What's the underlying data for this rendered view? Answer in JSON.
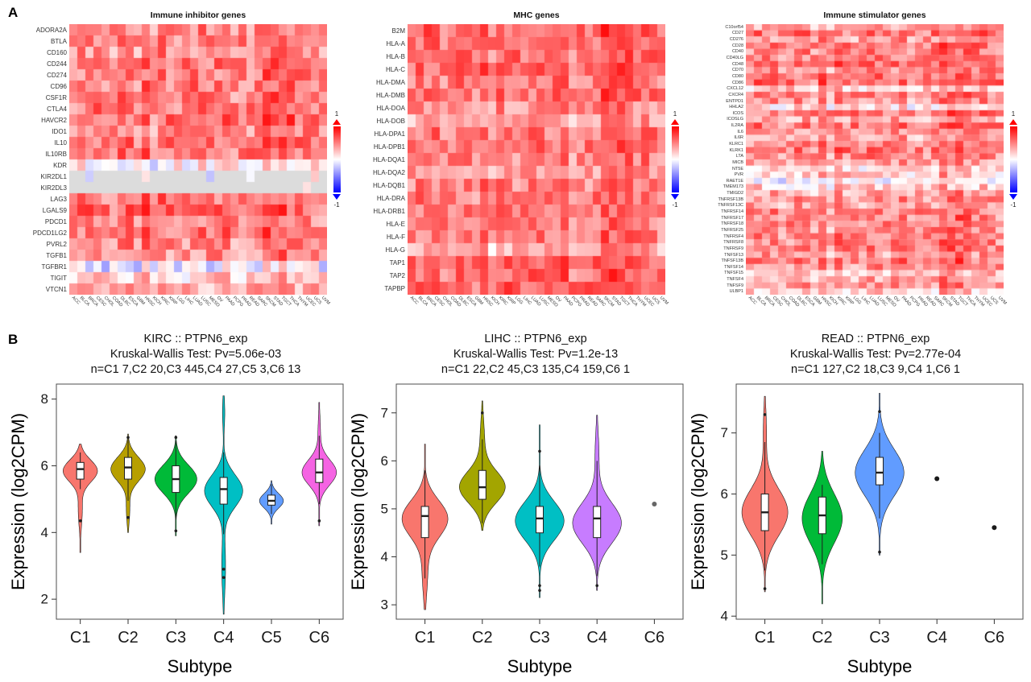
{
  "chart_data": [
    {
      "id": "panel-a",
      "type": "heatmap",
      "label": "A",
      "cancer_types": [
        "ACC",
        "BLCA",
        "BRCA",
        "CESC",
        "CHOL",
        "COAD",
        "DLBC",
        "ESCA",
        "GBM",
        "HNSC",
        "KICH",
        "KIRC",
        "KIRP",
        "LGG",
        "LIHC",
        "LUAD",
        "LUSC",
        "MESO",
        "OV",
        "PAAD",
        "PCPG",
        "PRAD",
        "READ",
        "SARC",
        "SKCM",
        "STAD",
        "TGCT",
        "THCA",
        "THYM",
        "UCEC",
        "UCS",
        "UVM"
      ],
      "col_bias": [
        0,
        0.05,
        0.05,
        0.05,
        -0.05,
        0,
        0.05,
        0.05,
        -0.05,
        0.12,
        -0.08,
        0.1,
        0.02,
        0,
        0,
        0.05,
        0.05,
        0,
        0.05,
        0.1,
        -0.05,
        0,
        0,
        0.05,
        0.2,
        0.15,
        0.18,
        0.12,
        0.05,
        0.1,
        0.05,
        -0.02
      ],
      "colors": {
        "pos": "#FF0000",
        "neg": "#0000FF",
        "na": "#DCDCDC"
      },
      "colorbar": {
        "max_label": "1",
        "min_label": "-1"
      },
      "value_range": [
        -1,
        1
      ],
      "heatmaps": [
        {
          "title": "Immune inhibitor genes",
          "seed": 11,
          "noise": 0.5,
          "na_rows": [
            "KIR2DL1",
            "KIR2DL3"
          ],
          "genes": [
            "ADORA2A",
            "BTLA",
            "CD160",
            "CD244",
            "CD274",
            "CD96",
            "CSF1R",
            "CTLA4",
            "HAVCR2",
            "IDO1",
            "IL10",
            "IL10RB",
            "KDR",
            "KIR2DL1",
            "KIR2DL3",
            "LAG3",
            "LGALS9",
            "PDCD1",
            "PDCD1LG2",
            "PVRL2",
            "TGFB1",
            "TGFBR1",
            "TIGIT",
            "VTCN1"
          ],
          "row_bias": [
            0.45,
            0.45,
            0.4,
            0.5,
            0.45,
            0.5,
            0.5,
            0.5,
            0.55,
            0.45,
            0.5,
            0.5,
            0.05,
            0,
            0,
            0.5,
            0.55,
            0.45,
            0.5,
            0.45,
            0.4,
            -0.1,
            0.15,
            0.3
          ]
        },
        {
          "title": "MHC genes",
          "seed": 22,
          "noise": 0.45,
          "na_rows": [],
          "genes": [
            "B2M",
            "HLA-A",
            "HLA-B",
            "HLA-C",
            "HLA-DMA",
            "HLA-DMB",
            "HLA-DOA",
            "HLA-DOB",
            "HLA-DPA1",
            "HLA-DPB1",
            "HLA-DQA1",
            "HLA-DQA2",
            "HLA-DQB1",
            "HLA-DRA",
            "HLA-DRB1",
            "HLA-E",
            "HLA-F",
            "HLA-G",
            "TAP1",
            "TAP2",
            "TAPBP"
          ],
          "row_bias": [
            0.6,
            0.55,
            0.55,
            0.55,
            0.5,
            0.5,
            0.4,
            0.3,
            0.5,
            0.5,
            0.45,
            0.35,
            0.45,
            0.5,
            0.5,
            0.5,
            0.5,
            0.3,
            0.55,
            0.55,
            0.6
          ]
        },
        {
          "title": "Immune stimulator genes",
          "seed": 33,
          "noise": 0.5,
          "na_rows": [],
          "genes": [
            "C10orf54",
            "CD27",
            "CD276",
            "CD28",
            "CD40",
            "CD40LG",
            "CD48",
            "CD70",
            "CD80",
            "CD86",
            "CXCL12",
            "CXCR4",
            "ENTPD1",
            "HHLA2",
            "ICOS",
            "ICOSLG",
            "IL2RA",
            "IL6",
            "IL6R",
            "KLRC1",
            "KLRK1",
            "LTA",
            "MICB",
            "NT5E",
            "PVR",
            "RAET1E",
            "TMEM173",
            "TMIGD2",
            "TNFRSF13B",
            "TNFRSF13C",
            "TNFRSF14",
            "TNFRSF17",
            "TNFRSF18",
            "TNFRSF25",
            "TNFRSF4",
            "TNFRSF8",
            "TNFRSF9",
            "TNFSF13",
            "TNFSF13B",
            "TNFSF14",
            "TNFSF15",
            "TNFSF4",
            "TNFSF9",
            "ULBP1"
          ],
          "row_bias": [
            0.3,
            0.5,
            0.35,
            0.5,
            0.45,
            0.45,
            0.55,
            0.4,
            0.5,
            0.55,
            0.2,
            0.45,
            0.4,
            0.1,
            0.5,
            0.3,
            0.5,
            0.35,
            0.3,
            0.45,
            0.5,
            0.45,
            0.35,
            0.15,
            0.2,
            0.0,
            0.15,
            0.3,
            0.4,
            0.35,
            0.45,
            0.45,
            0.45,
            0.4,
            0.45,
            0.45,
            0.45,
            0.35,
            0.5,
            0.4,
            0.2,
            0.3,
            0.35,
            0.15
          ]
        }
      ]
    },
    {
      "id": "panel-b",
      "type": "violin",
      "label": "B",
      "plots": [
        {
          "title_line1": "KIRC :: PTPN6_exp",
          "title_line2": "Kruskal-Wallis Test: Pv=5.06e-03",
          "title_line3": "n=C1 7,C2 20,C3 445,C4 27,C5 3,C6 13",
          "ylab": "Expression (log2CPM)",
          "xlab": "Subtype",
          "ylim": [
            1.4,
            8.45
          ],
          "yticks": [
            2,
            4,
            6,
            8
          ],
          "violins": [
            {
              "label": "C1",
              "type": "violin",
              "color": "#F8766D",
              "min": 3.4,
              "max": 6.65,
              "maxw": 0.72,
              "modes": [
                [
                  5.85,
                  0.33,
                  1
                ],
                [
                  4.7,
                  0.5,
                  0.12
                ]
              ],
              "box": [
                5.3,
                5.6,
                5.9,
                6.1,
                6.4
              ],
              "outliers": [
                4.35
              ]
            },
            {
              "label": "C2",
              "type": "violin",
              "color": "#B79F00",
              "min": 4.0,
              "max": 6.95,
              "maxw": 0.72,
              "modes": [
                [
                  5.9,
                  0.36,
                  1
                ],
                [
                  4.7,
                  0.4,
                  0.1
                ]
              ],
              "box": [
                4.95,
                5.6,
                5.95,
                6.25,
                6.8
              ],
              "outliers": [
                4.45,
                6.85
              ]
            },
            {
              "label": "C3",
              "type": "violin",
              "color": "#00BA38",
              "min": 3.9,
              "max": 6.9,
              "maxw": 0.88,
              "modes": [
                [
                  5.6,
                  0.42,
                  1
                ]
              ],
              "box": [
                4.4,
                5.2,
                5.6,
                6.0,
                6.75
              ],
              "outliers": [
                6.85,
                4.05
              ]
            },
            {
              "label": "C4",
              "type": "violin",
              "color": "#00BFC4",
              "min": 1.55,
              "max": 8.1,
              "maxw": 0.8,
              "modes": [
                [
                  5.25,
                  0.48,
                  1
                ],
                [
                  3.0,
                  0.8,
                  0.1
                ],
                [
                  7.6,
                  0.45,
                  0.06
                ]
              ],
              "box": [
                3.95,
                4.85,
                5.3,
                5.65,
                6.4
              ],
              "outliers": [
                2.65,
                2.9
              ]
            },
            {
              "label": "C5",
              "type": "violin",
              "color": "#619CFF",
              "min": 4.25,
              "max": 5.55,
              "maxw": 0.5,
              "modes": [
                [
                  4.95,
                  0.22,
                  1
                ]
              ],
              "box": [
                4.55,
                4.82,
                4.95,
                5.12,
                5.45
              ],
              "outliers": []
            },
            {
              "label": "C6",
              "type": "violin",
              "color": "#F564E3",
              "min": 4.2,
              "max": 7.9,
              "maxw": 0.72,
              "modes": [
                [
                  5.8,
                  0.38,
                  1
                ],
                [
                  7.0,
                  0.5,
                  0.07
                ]
              ],
              "box": [
                4.85,
                5.5,
                5.8,
                6.2,
                6.9
              ],
              "outliers": [
                4.35
              ]
            }
          ]
        },
        {
          "title_line1": "LIHC :: PTPN6_exp",
          "title_line2": "Kruskal-Wallis Test: Pv=1.2e-13",
          "title_line3": "n=C1 22,C2 45,C3 135,C4 159,C6 1",
          "ylab": "Expression (log2CPM)",
          "xlab": "Subtype",
          "ylim": [
            2.7,
            7.6
          ],
          "yticks": [
            3,
            4,
            5,
            6,
            7
          ],
          "violins": [
            {
              "label": "C1",
              "type": "violin",
              "color": "#F8766D",
              "min": 2.9,
              "max": 6.35,
              "maxw": 0.8,
              "modes": [
                [
                  4.8,
                  0.38,
                  1
                ],
                [
                  3.7,
                  0.5,
                  0.12
                ]
              ],
              "box": [
                3.55,
                4.4,
                4.85,
                5.05,
                5.8
              ],
              "outliers": []
            },
            {
              "label": "C2",
              "type": "violin",
              "color": "#A3A500",
              "min": 4.55,
              "max": 7.25,
              "maxw": 0.8,
              "modes": [
                [
                  5.45,
                  0.33,
                  1
                ],
                [
                  6.4,
                  0.45,
                  0.1
                ]
              ],
              "box": [
                4.7,
                5.2,
                5.45,
                5.8,
                6.45
              ],
              "outliers": [
                7.0
              ]
            },
            {
              "label": "C3",
              "type": "violin",
              "color": "#00BFC4",
              "min": 3.15,
              "max": 6.75,
              "maxw": 0.85,
              "modes": [
                [
                  4.75,
                  0.4,
                  1
                ]
              ],
              "box": [
                3.8,
                4.5,
                4.8,
                5.05,
                5.9
              ],
              "outliers": [
                6.2,
                3.4,
                3.3
              ]
            },
            {
              "label": "C4",
              "type": "violin",
              "color": "#C77CFF",
              "min": 3.3,
              "max": 6.95,
              "maxw": 0.85,
              "modes": [
                [
                  4.7,
                  0.42,
                  1
                ],
                [
                  6.1,
                  0.5,
                  0.08
                ]
              ],
              "box": [
                3.6,
                4.4,
                4.8,
                5.05,
                6.0
              ],
              "outliers": [
                3.4
              ]
            },
            {
              "label": "C6",
              "type": "point",
              "value": 5.1,
              "color": "#666666"
            }
          ]
        },
        {
          "title_line1": "READ :: PTPN6_exp",
          "title_line2": "Kruskal-Wallis Test: Pv=2.77e-04",
          "title_line3": "n=C1 127,C2 18,C3 9,C4 1,C6 1",
          "ylab": "Expression (log2CPM)",
          "xlab": "Subtype",
          "ylim": [
            3.95,
            7.8
          ],
          "yticks": [
            4,
            5,
            6,
            7
          ],
          "violins": [
            {
              "label": "C1",
              "type": "violin",
              "color": "#F8766D",
              "min": 4.4,
              "max": 7.6,
              "maxw": 0.8,
              "modes": [
                [
                  5.7,
                  0.38,
                  1
                ],
                [
                  7.0,
                  0.4,
                  0.07
                ]
              ],
              "box": [
                4.75,
                5.4,
                5.7,
                6.0,
                6.85
              ],
              "outliers": [
                7.3,
                4.45
              ]
            },
            {
              "label": "C2",
              "type": "violin",
              "color": "#00BA38",
              "min": 4.2,
              "max": 6.7,
              "maxw": 0.7,
              "modes": [
                [
                  5.6,
                  0.4,
                  1
                ]
              ],
              "box": [
                4.85,
                5.35,
                5.65,
                5.95,
                6.15
              ],
              "outliers": []
            },
            {
              "label": "C3",
              "type": "violin",
              "color": "#619CFF",
              "min": 5.0,
              "max": 7.65,
              "maxw": 0.85,
              "modes": [
                [
                  6.35,
                  0.38,
                  1
                ]
              ],
              "box": [
                5.6,
                6.15,
                6.35,
                6.6,
                7.0
              ],
              "outliers": [
                7.35,
                5.05
              ]
            },
            {
              "label": "C4",
              "type": "point",
              "value": 6.25,
              "color": "#1a1a1a"
            },
            {
              "label": "C6",
              "type": "point",
              "value": 5.45,
              "color": "#1a1a1a"
            }
          ]
        }
      ]
    }
  ]
}
